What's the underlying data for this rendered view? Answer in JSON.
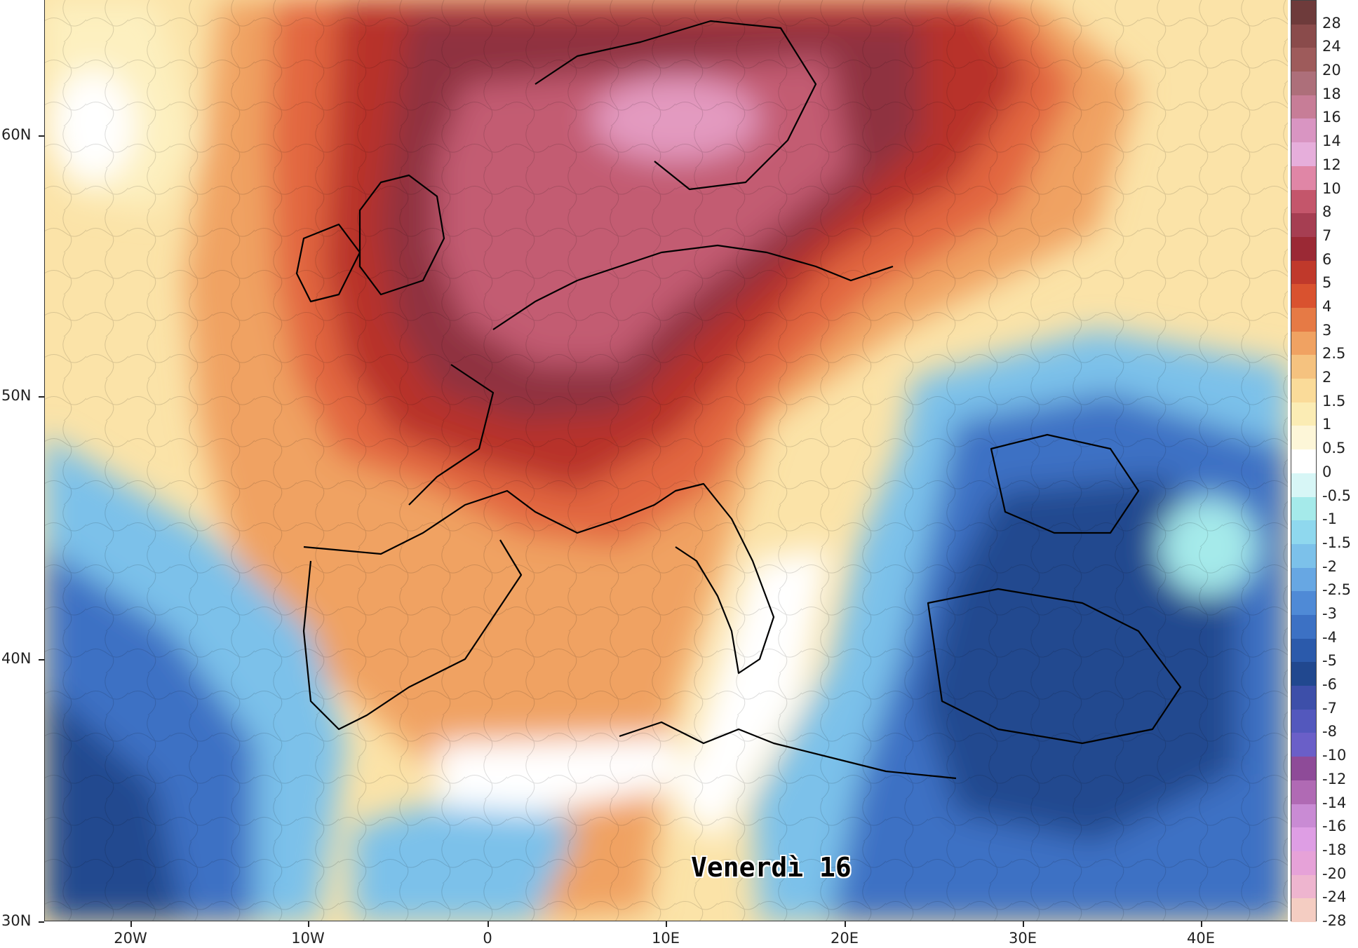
{
  "map": {
    "title_label": "Venerdì 16",
    "longitude_ticks": [
      "20W",
      "10W",
      "0",
      "10E",
      "20E",
      "30E",
      "40E"
    ],
    "latitude_ticks": [
      "60N",
      "50N",
      "40N",
      "30N"
    ],
    "colorbar": {
      "labels": [
        "28",
        "24",
        "20",
        "18",
        "16",
        "14",
        "12",
        "10",
        "8",
        "7",
        "6",
        "5",
        "4",
        "3",
        "2.5",
        "2",
        "1.5",
        "1",
        "0.5",
        "0",
        "-0.5",
        "-1",
        "-1.5",
        "-2",
        "-2.5",
        "-3",
        "-4",
        "-5",
        "-6",
        "-7",
        "-8",
        "-10",
        "-12",
        "-14",
        "-16",
        "-18",
        "-20",
        "-24",
        "-28"
      ],
      "colors": [
        "#6e3b3b",
        "#8a4b4b",
        "#9e5b5b",
        "#ad6f7a",
        "#c77d97",
        "#d995c2",
        "#e6aedb",
        "#e086a6",
        "#c4566b",
        "#a63e52",
        "#9b2935",
        "#c0392b",
        "#d9522f",
        "#e67a45",
        "#f0a262",
        "#f5c27f",
        "#fadb99",
        "#fbecb4",
        "#fdf6d8",
        "#ffffff",
        "#d7f6f6",
        "#a5eaea",
        "#8fd8ee",
        "#7cc1ea",
        "#67a7e3",
        "#4f8ad6",
        "#3c71c4",
        "#2b5aab",
        "#21488f",
        "#3d4fa9",
        "#5358bd",
        "#6a5fc8",
        "#8e4b98",
        "#b06ab4",
        "#c98bd4",
        "#de9ee4",
        "#e6a2d8",
        "#eeb5cf",
        "#f4cdc2"
      ]
    },
    "palette": {
      "deep_red": "#9b2935",
      "maroon": "#7e2f3f",
      "rose": "#c35b72",
      "pink": "#e39ac0",
      "orange": "#e2663f",
      "light_orange": "#f3b173",
      "cream": "#fbe8ad",
      "white": "#ffffff",
      "cyan": "#a5eaea",
      "light_blue": "#7cc1ea",
      "blue": "#3c71c4",
      "dark_blue": "#21488f"
    }
  }
}
